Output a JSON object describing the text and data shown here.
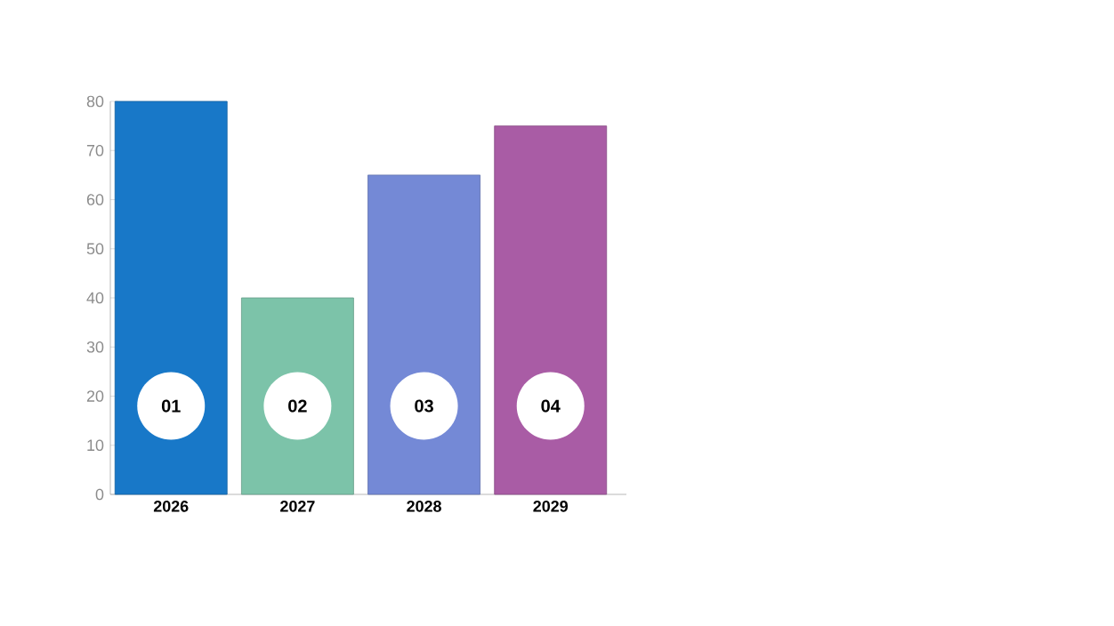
{
  "chart_data": {
    "type": "bar",
    "categories": [
      "2026",
      "2027",
      "2028",
      "2029"
    ],
    "values": [
      80,
      40,
      65,
      75
    ],
    "colors": [
      "#1878c8",
      "#7cc3a9",
      "#7489d6",
      "#a95ca5"
    ],
    "ylim": [
      0,
      80
    ],
    "yticks": [
      0,
      10,
      20,
      30,
      40,
      50,
      60,
      70,
      80
    ],
    "annotations": [
      {
        "text": "01",
        "x": "2026",
        "y": 18
      },
      {
        "text": "02",
        "x": "2027",
        "y": 18
      },
      {
        "text": "03",
        "x": "2028",
        "y": 18
      },
      {
        "text": "04",
        "x": "2029",
        "y": 18
      }
    ]
  }
}
